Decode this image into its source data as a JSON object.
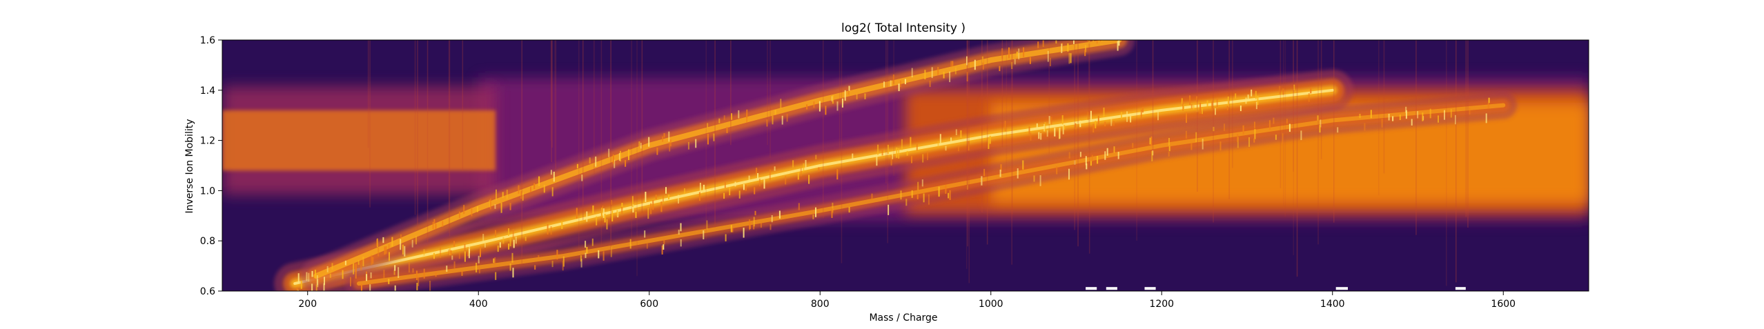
{
  "chart_data": {
    "type": "heatmap",
    "title": "log2( Total Intensity )",
    "xlabel": "Mass / Charge",
    "ylabel": "Inverse Ion Mobility",
    "xlim": [
      100,
      1700
    ],
    "ylim": [
      0.6,
      1.6
    ],
    "xticks": [
      200,
      400,
      600,
      800,
      1000,
      1200,
      1400,
      1600
    ],
    "yticks": [
      0.6,
      0.8,
      1.0,
      1.2,
      1.4,
      1.6
    ],
    "xtick_labels": [
      "200",
      "400",
      "600",
      "800",
      "1000",
      "1200",
      "1400",
      "1600"
    ],
    "ytick_labels": [
      "0.6",
      "0.8",
      "1.0",
      "1.2",
      "1.4",
      "1.6"
    ],
    "colormap": "inferno",
    "grid": false,
    "legend": "none",
    "features": {
      "background_band": {
        "center_y": 1.2,
        "half_width_y": 0.12,
        "x_start": 100,
        "x_end": 420
      },
      "broad_band": {
        "y_low": 0.88,
        "y_high": 1.45,
        "x_start": 900,
        "x_end": 1700
      },
      "charge_trends": [
        {
          "name_hint": "main",
          "points": [
            [
              185,
              0.63
            ],
            [
              400,
              0.79
            ],
            [
              600,
              0.95
            ],
            [
              800,
              1.1
            ],
            [
              1000,
              1.22
            ],
            [
              1200,
              1.32
            ],
            [
              1400,
              1.4
            ]
          ]
        },
        {
          "name_hint": "upper",
          "points": [
            [
              210,
              0.66
            ],
            [
              400,
              0.93
            ],
            [
              600,
              1.18
            ],
            [
              800,
              1.36
            ],
            [
              1000,
              1.52
            ],
            [
              1150,
              1.6
            ]
          ]
        },
        {
          "name_hint": "lower",
          "points": [
            [
              260,
              0.63
            ],
            [
              500,
              0.74
            ],
            [
              800,
              0.92
            ],
            [
              1000,
              1.05
            ],
            [
              1200,
              1.18
            ],
            [
              1400,
              1.28
            ],
            [
              1600,
              1.34
            ]
          ]
        }
      ],
      "empty_markers": [
        {
          "x": [
            1111,
            1124
          ],
          "y": 0.605
        },
        {
          "x": [
            1135,
            1148
          ],
          "y": 0.605
        },
        {
          "x": [
            1180,
            1193
          ],
          "y": 0.605
        },
        {
          "x": [
            1404,
            1418
          ],
          "y": 0.605
        },
        {
          "x": [
            1544,
            1556
          ],
          "y": 0.605
        }
      ]
    }
  }
}
